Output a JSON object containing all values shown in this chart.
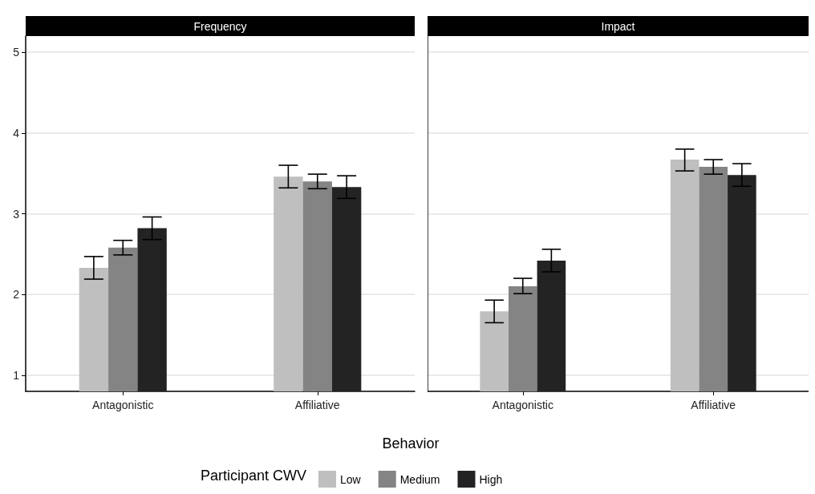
{
  "chart_data": [
    {
      "type": "bar",
      "title": "Frequency",
      "xlabel": "Behavior",
      "legend_title": "Participant CWV",
      "legend": "bottom",
      "grid": "y",
      "categories": [
        "Antagonistic",
        "Affiliative"
      ],
      "ylim": [
        0.8,
        5.2
      ],
      "yticks": [
        1,
        2,
        3,
        4,
        5
      ],
      "series": [
        {
          "name": "Low",
          "color": "#bfbfbf",
          "values": [
            2.33,
            3.46
          ],
          "errors": [
            [
              2.19,
              2.47
            ],
            [
              3.32,
              3.6
            ]
          ]
        },
        {
          "name": "Medium",
          "color": "#848484",
          "values": [
            2.58,
            3.4
          ],
          "errors": [
            [
              2.49,
              2.67
            ],
            [
              3.31,
              3.49
            ]
          ]
        },
        {
          "name": "High",
          "color": "#232323",
          "values": [
            2.82,
            3.33
          ],
          "errors": [
            [
              2.68,
              2.96
            ],
            [
              3.19,
              3.47
            ]
          ]
        }
      ]
    },
    {
      "type": "bar",
      "title": "Impact",
      "grid": "y",
      "tick_labels": "x",
      "categories": [
        "Antagonistic",
        "Affiliative"
      ],
      "ylim": [
        0.8,
        5.2
      ],
      "yticks": [
        1,
        2,
        3,
        4,
        5
      ],
      "series": [
        {
          "color": "#bfbfbf",
          "values": [
            1.79,
            3.67
          ],
          "errors": [
            [
              1.65,
              1.93
            ],
            [
              3.53,
              3.8
            ]
          ]
        },
        {
          "color": "#848484",
          "values": [
            2.1,
            3.58
          ],
          "errors": [
            [
              2.01,
              2.2
            ],
            [
              3.49,
              3.67
            ]
          ]
        },
        {
          "color": "#232323",
          "values": [
            2.42,
            3.48
          ],
          "errors": [
            [
              2.28,
              2.56
            ],
            [
              3.34,
              3.62
            ]
          ]
        }
      ]
    }
  ]
}
